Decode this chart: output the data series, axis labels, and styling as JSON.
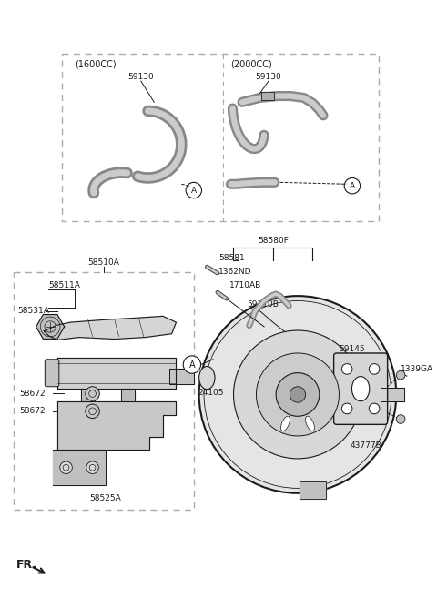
{
  "background_color": "#ffffff",
  "line_color": "#1a1a1a",
  "part_fill": "#d8d8d8",
  "part_stroke": "#555555",
  "labels": {
    "1600CC": "(1600CC)",
    "2000CC": "(2000CC)",
    "59130_1": "59130",
    "59130_2": "59130",
    "58580F": "58580F",
    "58581": "58581",
    "1362ND": "1362ND",
    "1710AB": "1710AB",
    "58510A": "58510A",
    "58511A": "58511A",
    "58531A": "58531A",
    "58672_1": "58672",
    "58672_2": "58672",
    "24105": "24105",
    "58525A": "58525A",
    "59110B": "59110B",
    "59145": "59145",
    "1339GA": "1339GA",
    "43777B": "43777B",
    "FR": "FR."
  }
}
